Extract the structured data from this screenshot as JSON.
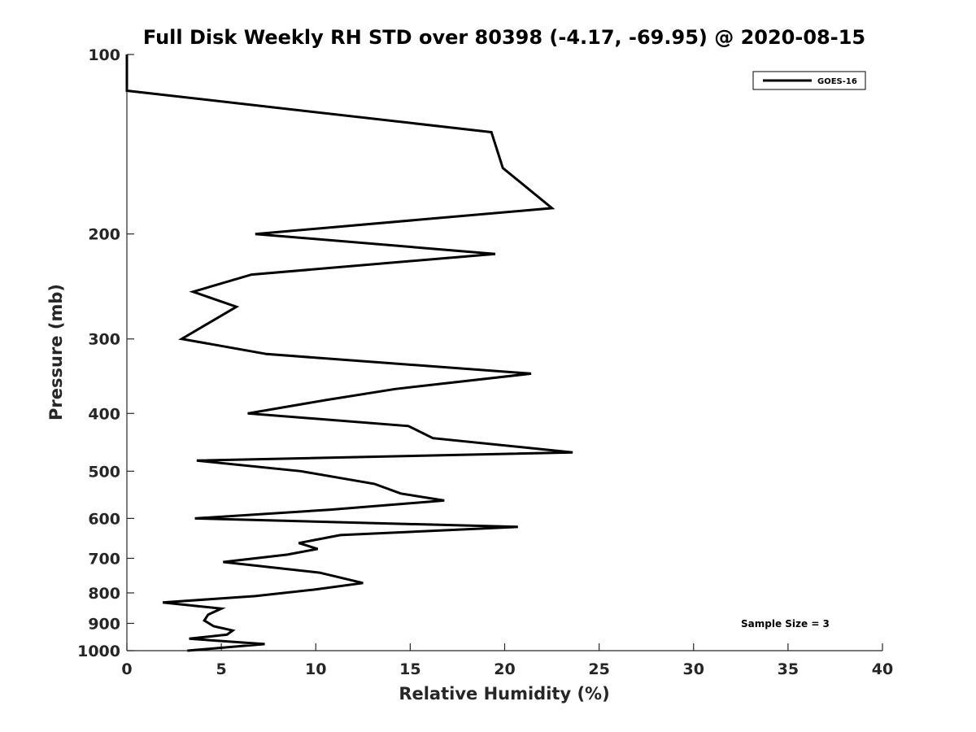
{
  "chart_data": {
    "type": "line",
    "title": "Full Disk Weekly RH STD over 80398 (-4.17, -69.95) @ 2020-08-15",
    "xlabel": "Relative Humidity (%)",
    "ylabel": "Pressure (mb)",
    "xlim": [
      0,
      40
    ],
    "ylim": [
      100,
      1000
    ],
    "yscale": "log",
    "y_reversed": true,
    "x_ticks": [
      0,
      5,
      10,
      15,
      20,
      25,
      30,
      35,
      40
    ],
    "y_ticks": [
      100,
      200,
      300,
      400,
      500,
      600,
      700,
      800,
      900,
      1000
    ],
    "grid": false,
    "legend_position": "top-right",
    "annotation": "Sample Size = 3",
    "series": [
      {
        "name": "GOES-16",
        "color": "#000000",
        "points": [
          [
            0.0,
            100
          ],
          [
            0.0,
            115
          ],
          [
            19.3,
            135
          ],
          [
            19.9,
            155
          ],
          [
            22.5,
            181
          ],
          [
            6.8,
            200
          ],
          [
            19.5,
            216
          ],
          [
            6.6,
            234
          ],
          [
            3.5,
            250
          ],
          [
            5.8,
            265
          ],
          [
            2.9,
            300
          ],
          [
            7.4,
            318
          ],
          [
            21.4,
            343
          ],
          [
            14.2,
            364
          ],
          [
            10.5,
            380
          ],
          [
            6.4,
            400
          ],
          [
            14.9,
            420
          ],
          [
            16.2,
            440
          ],
          [
            23.6,
            465
          ],
          [
            3.7,
            480
          ],
          [
            9.2,
            500
          ],
          [
            13.1,
            525
          ],
          [
            14.5,
            545
          ],
          [
            16.8,
            560
          ],
          [
            10.8,
            580
          ],
          [
            3.6,
            600
          ],
          [
            20.7,
            620
          ],
          [
            11.3,
            640
          ],
          [
            9.1,
            660
          ],
          [
            10.1,
            675
          ],
          [
            8.5,
            690
          ],
          [
            5.1,
            710
          ],
          [
            10.2,
            740
          ],
          [
            12.5,
            770
          ],
          [
            9.9,
            790
          ],
          [
            6.8,
            810
          ],
          [
            1.9,
            830
          ],
          [
            5.0,
            850
          ],
          [
            4.3,
            870
          ],
          [
            4.1,
            890
          ],
          [
            4.6,
            910
          ],
          [
            5.6,
            925
          ],
          [
            5.3,
            940
          ],
          [
            3.3,
            955
          ],
          [
            7.3,
            975
          ],
          [
            3.2,
            1000
          ]
        ]
      }
    ]
  }
}
